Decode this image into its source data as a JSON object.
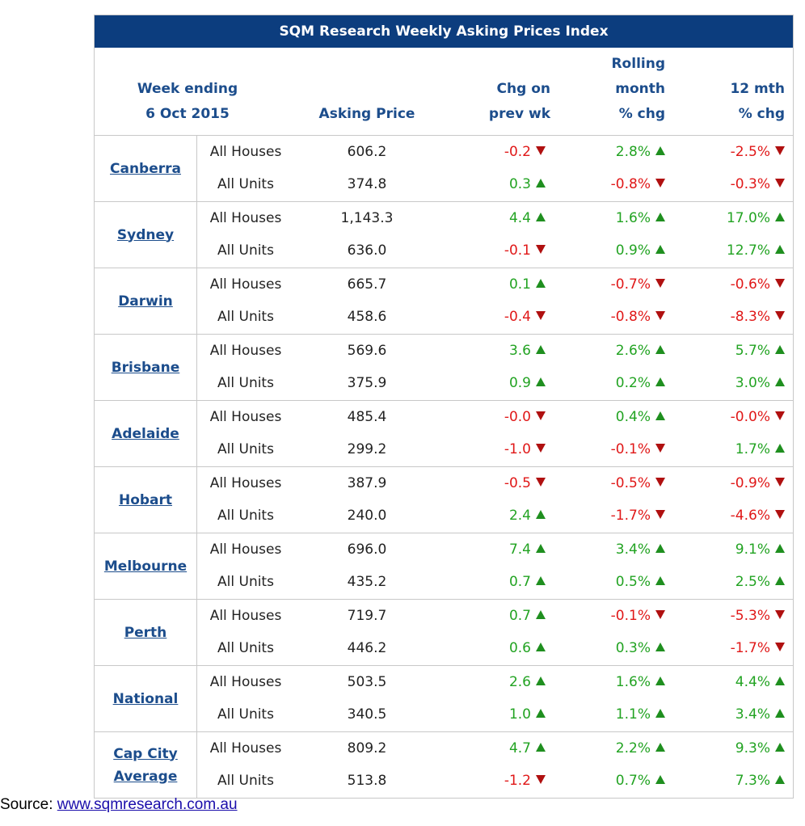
{
  "title": "SQM Research Weekly Asking Prices Index",
  "headers": {
    "week_line1": "Week ending",
    "week_line2": "6 Oct 2015",
    "asking_price": "Asking Price",
    "wk_line1": "Chg on",
    "wk_line2": "prev wk",
    "mo_line1": "Rolling",
    "mo_line2": "month",
    "mo_line3": "% chg",
    "yr_line1": "12 mth",
    "yr_line2": "% chg"
  },
  "colors": {
    "title_bg": "#0c3d7e",
    "header_text": "#1c4d8c",
    "positive": "#22a322",
    "negative": "#e01818"
  },
  "groups": [
    {
      "city": [
        "Canberra"
      ],
      "rows": [
        {
          "type": "All Houses",
          "price": "606.2",
          "wk": "-0.2",
          "wk_dir": "down",
          "mo": "2.8%",
          "mo_dir": "up",
          "yr": "-2.5%",
          "yr_dir": "down"
        },
        {
          "type": "All Units",
          "price": "374.8",
          "wk": "0.3",
          "wk_dir": "up",
          "mo": "-0.8%",
          "mo_dir": "down",
          "yr": "-0.3%",
          "yr_dir": "down"
        }
      ]
    },
    {
      "city": [
        "Sydney"
      ],
      "rows": [
        {
          "type": "All Houses",
          "price": "1,143.3",
          "wk": "4.4",
          "wk_dir": "up",
          "mo": "1.6%",
          "mo_dir": "up",
          "yr": "17.0%",
          "yr_dir": "up"
        },
        {
          "type": "All Units",
          "price": "636.0",
          "wk": "-0.1",
          "wk_dir": "down",
          "mo": "0.9%",
          "mo_dir": "up",
          "yr": "12.7%",
          "yr_dir": "up"
        }
      ]
    },
    {
      "city": [
        "Darwin"
      ],
      "rows": [
        {
          "type": "All Houses",
          "price": "665.7",
          "wk": "0.1",
          "wk_dir": "up",
          "mo": "-0.7%",
          "mo_dir": "down",
          "yr": "-0.6%",
          "yr_dir": "down"
        },
        {
          "type": "All Units",
          "price": "458.6",
          "wk": "-0.4",
          "wk_dir": "down",
          "mo": "-0.8%",
          "mo_dir": "down",
          "yr": "-8.3%",
          "yr_dir": "down"
        }
      ]
    },
    {
      "city": [
        "Brisbane"
      ],
      "rows": [
        {
          "type": "All Houses",
          "price": "569.6",
          "wk": "3.6",
          "wk_dir": "up",
          "mo": "2.6%",
          "mo_dir": "up",
          "yr": "5.7%",
          "yr_dir": "up"
        },
        {
          "type": "All Units",
          "price": "375.9",
          "wk": "0.9",
          "wk_dir": "up",
          "mo": "0.2%",
          "mo_dir": "up",
          "yr": "3.0%",
          "yr_dir": "up"
        }
      ]
    },
    {
      "city": [
        "Adelaide"
      ],
      "rows": [
        {
          "type": "All Houses",
          "price": "485.4",
          "wk": "-0.0",
          "wk_dir": "down",
          "mo": "0.4%",
          "mo_dir": "up",
          "yr": "-0.0%",
          "yr_dir": "down"
        },
        {
          "type": "All Units",
          "price": "299.2",
          "wk": "-1.0",
          "wk_dir": "down",
          "mo": "-0.1%",
          "mo_dir": "down",
          "yr": "1.7%",
          "yr_dir": "up"
        }
      ]
    },
    {
      "city": [
        "Hobart"
      ],
      "rows": [
        {
          "type": "All Houses",
          "price": "387.9",
          "wk": "-0.5",
          "wk_dir": "down",
          "mo": "-0.5%",
          "mo_dir": "down",
          "yr": "-0.9%",
          "yr_dir": "down"
        },
        {
          "type": "All Units",
          "price": "240.0",
          "wk": "2.4",
          "wk_dir": "up",
          "mo": "-1.7%",
          "mo_dir": "down",
          "yr": "-4.6%",
          "yr_dir": "down"
        }
      ]
    },
    {
      "city": [
        "Melbourne"
      ],
      "rows": [
        {
          "type": "All Houses",
          "price": "696.0",
          "wk": "7.4",
          "wk_dir": "up",
          "mo": "3.4%",
          "mo_dir": "up",
          "yr": "9.1%",
          "yr_dir": "up"
        },
        {
          "type": "All Units",
          "price": "435.2",
          "wk": "0.7",
          "wk_dir": "up",
          "mo": "0.5%",
          "mo_dir": "up",
          "yr": "2.5%",
          "yr_dir": "up"
        }
      ]
    },
    {
      "city": [
        "Perth"
      ],
      "rows": [
        {
          "type": "All Houses",
          "price": "719.7",
          "wk": "0.7",
          "wk_dir": "up",
          "mo": "-0.1%",
          "mo_dir": "down",
          "yr": "-5.3%",
          "yr_dir": "down"
        },
        {
          "type": "All Units",
          "price": "446.2",
          "wk": "0.6",
          "wk_dir": "up",
          "mo": "0.3%",
          "mo_dir": "up",
          "yr": "-1.7%",
          "yr_dir": "down"
        }
      ]
    },
    {
      "city": [
        "National"
      ],
      "rows": [
        {
          "type": "All Houses",
          "price": "503.5",
          "wk": "2.6",
          "wk_dir": "up",
          "mo": "1.6%",
          "mo_dir": "up",
          "yr": "4.4%",
          "yr_dir": "up"
        },
        {
          "type": "All Units",
          "price": "340.5",
          "wk": "1.0",
          "wk_dir": "up",
          "mo": "1.1%",
          "mo_dir": "up",
          "yr": "3.4%",
          "yr_dir": "up"
        }
      ]
    },
    {
      "city": [
        "Cap City",
        "Average"
      ],
      "rows": [
        {
          "type": "All Houses",
          "price": "809.2",
          "wk": "4.7",
          "wk_dir": "up",
          "mo": "2.2%",
          "mo_dir": "up",
          "yr": "9.3%",
          "yr_dir": "up"
        },
        {
          "type": "All Units",
          "price": "513.8",
          "wk": "-1.2",
          "wk_dir": "down",
          "mo": "0.7%",
          "mo_dir": "up",
          "yr": "7.3%",
          "yr_dir": "up"
        }
      ]
    }
  ],
  "source": {
    "label": "Source:",
    "link_text": "www.sqmresearch.com.au"
  }
}
